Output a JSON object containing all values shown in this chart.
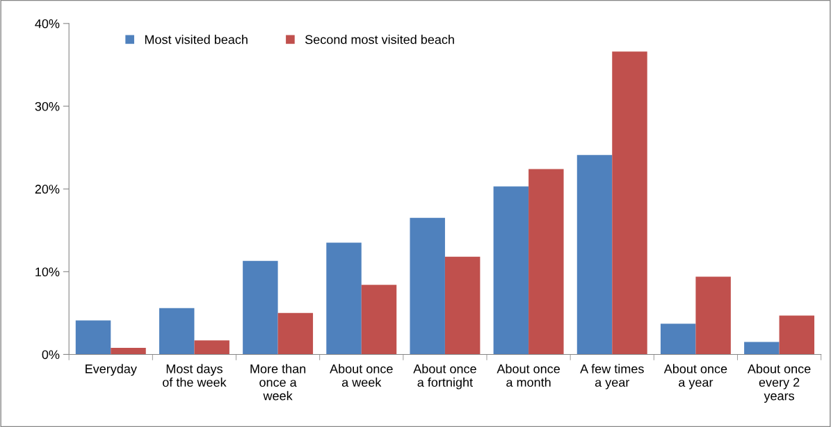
{
  "chart_data": {
    "type": "bar",
    "categories": [
      "Everyday",
      "Most days\nof the week",
      "More than\nonce a\nweek",
      "About once\na week",
      "About once\na fortnight",
      "About once\na month",
      "A few times\na year",
      "About once\na year",
      "About once\nevery 2\nyears"
    ],
    "series": [
      {
        "name": "Most visited beach",
        "color": "#4f81bd",
        "values": [
          4.1,
          5.6,
          11.3,
          13.5,
          16.5,
          20.3,
          24.1,
          3.7,
          1.5
        ]
      },
      {
        "name": "Second most visited beach",
        "color": "#c0504d",
        "values": [
          0.8,
          1.7,
          5.0,
          8.4,
          11.8,
          22.4,
          36.6,
          9.4,
          4.7
        ]
      }
    ],
    "ylim": [
      0,
      40
    ],
    "yticks": [
      {
        "value": 0,
        "label": "0%"
      },
      {
        "value": 10,
        "label": "10%"
      },
      {
        "value": 20,
        "label": "20%"
      },
      {
        "value": 30,
        "label": "30%"
      },
      {
        "value": 40,
        "label": "40%"
      }
    ],
    "grid": false,
    "legend": "top left"
  }
}
